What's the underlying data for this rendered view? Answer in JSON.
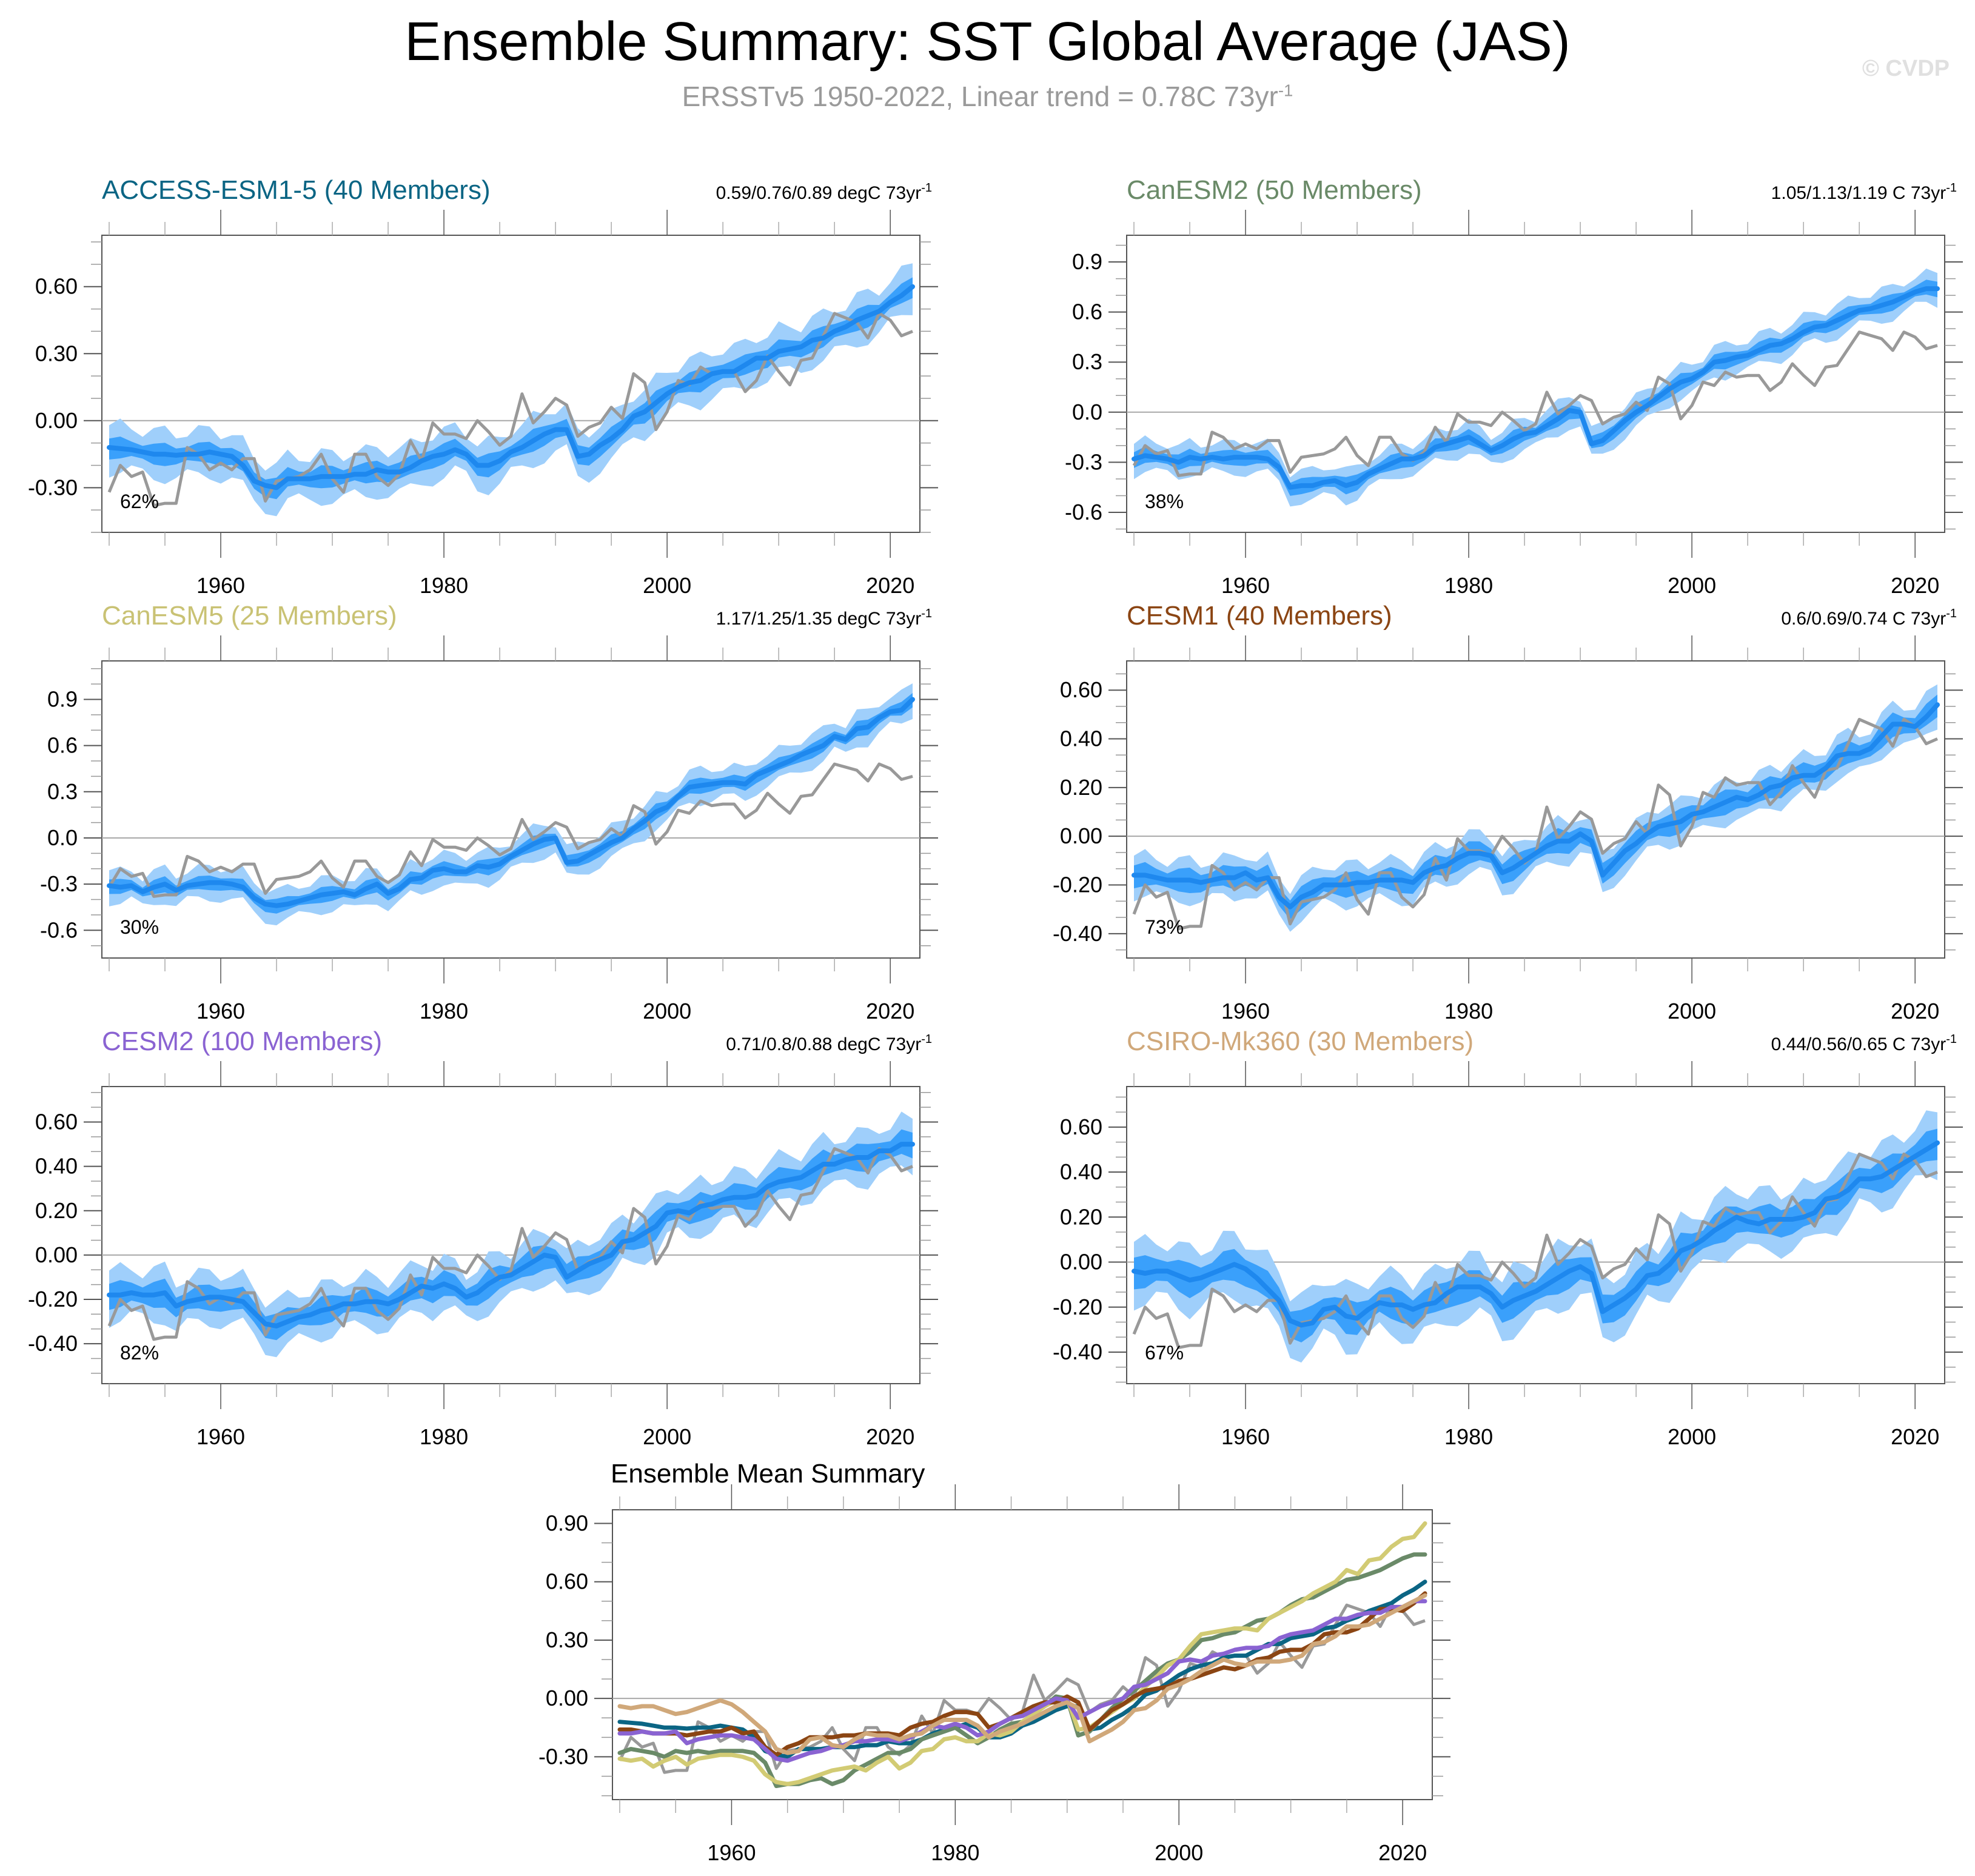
{
  "title": "Ensemble Summary: SST Global Average (JAS)",
  "subtitle_main": "ERSSTv5 1950-2022, Linear trend = 0.78C 73yr",
  "subtitle_sup": "-1",
  "watermark": "© CVDP",
  "colors": {
    "band_outer": "#9fcffb",
    "band_inner": "#3aa0fb",
    "mean_line": "#1e88ee",
    "obs_line": "#999999",
    "zero_line": "#a8a8a8"
  },
  "chart_data": [
    {
      "type": "line",
      "title": "ACCESS-ESM1-5 (40 Members)",
      "title_color": "#0b6584",
      "trend_text": "0.59/0.76/0.89 degC 73yr",
      "trend_sup": "-1",
      "percent_label": "62%",
      "xlim": [
        1950,
        2022
      ],
      "ylim": [
        -0.5,
        0.83
      ],
      "yticks": [
        -0.3,
        0.0,
        0.3,
        0.6
      ],
      "ytick_labels": [
        "-0.30",
        "0.00",
        "0.30",
        "0.60"
      ],
      "xticks": [
        1960,
        1980,
        2000,
        2020
      ],
      "xtick_labels": [
        "1960",
        "1980",
        "2000",
        "2020"
      ],
      "mean": [
        -0.12,
        -0.125,
        -0.13,
        -0.14,
        -0.15,
        -0.15,
        -0.155,
        -0.15,
        -0.15,
        -0.14,
        -0.15,
        -0.16,
        -0.2,
        -0.27,
        -0.29,
        -0.3,
        -0.26,
        -0.26,
        -0.26,
        -0.25,
        -0.25,
        -0.25,
        -0.24,
        -0.24,
        -0.22,
        -0.23,
        -0.23,
        -0.21,
        -0.18,
        -0.16,
        -0.15,
        -0.13,
        -0.15,
        -0.2,
        -0.2,
        -0.18,
        -0.14,
        -0.12,
        -0.09,
        -0.06,
        -0.04,
        -0.04,
        -0.16,
        -0.15,
        -0.11,
        -0.08,
        -0.04,
        0.02,
        0.04,
        0.08,
        0.12,
        0.15,
        0.17,
        0.18,
        0.21,
        0.22,
        0.22,
        0.25,
        0.28,
        0.28,
        0.31,
        0.32,
        0.33,
        0.36,
        0.37,
        0.4,
        0.42,
        0.45,
        0.47,
        0.49,
        0.53,
        0.56,
        0.6
      ],
      "inner_spread": 0.04,
      "outer_spread": 0.1
    },
    {
      "type": "line",
      "title": "CanESM2 (50 Members)",
      "title_color": "#6a8a68",
      "trend_text": "1.05/1.13/1.19 C 73yr",
      "trend_sup": "-1",
      "percent_label": "38%",
      "xlim": [
        1950,
        2022
      ],
      "ylim": [
        -0.72,
        1.06
      ],
      "yticks": [
        -0.6,
        -0.3,
        0.0,
        0.3,
        0.6,
        0.9
      ],
      "ytick_labels": [
        "-0.6",
        "-0.3",
        "0.0",
        "0.3",
        "0.6",
        "0.9"
      ],
      "xticks": [
        1960,
        1980,
        2000,
        2020
      ],
      "xtick_labels": [
        "1960",
        "1980",
        "2000",
        "2020"
      ],
      "mean": [
        -0.28,
        -0.26,
        -0.27,
        -0.28,
        -0.3,
        -0.27,
        -0.28,
        -0.27,
        -0.28,
        -0.27,
        -0.27,
        -0.27,
        -0.28,
        -0.33,
        -0.45,
        -0.44,
        -0.44,
        -0.42,
        -0.41,
        -0.44,
        -0.42,
        -0.37,
        -0.34,
        -0.31,
        -0.28,
        -0.28,
        -0.26,
        -0.21,
        -0.19,
        -0.17,
        -0.15,
        -0.19,
        -0.23,
        -0.2,
        -0.16,
        -0.13,
        -0.12,
        -0.08,
        -0.04,
        0.01,
        0.0,
        -0.19,
        -0.17,
        -0.11,
        -0.05,
        0.0,
        0.04,
        0.09,
        0.14,
        0.18,
        0.2,
        0.24,
        0.3,
        0.31,
        0.33,
        0.34,
        0.37,
        0.4,
        0.41,
        0.44,
        0.48,
        0.51,
        0.52,
        0.55,
        0.58,
        0.61,
        0.62,
        0.64,
        0.66,
        0.69,
        0.72,
        0.74,
        0.74
      ],
      "inner_spread": 0.04,
      "outer_spread": 0.09
    },
    {
      "type": "line",
      "title": "CanESM5 (25 Members)",
      "title_color": "#c9c274",
      "trend_text": "1.17/1.25/1.35 degC 73yr",
      "trend_sup": "-1",
      "percent_label": "30%",
      "xlim": [
        1950,
        2022
      ],
      "ylim": [
        -0.78,
        1.15
      ],
      "yticks": [
        -0.6,
        -0.3,
        0.0,
        0.3,
        0.6,
        0.9
      ],
      "ytick_labels": [
        "-0.6",
        "-0.3",
        "0.0",
        "0.3",
        "0.6",
        "0.9"
      ],
      "xticks": [
        1960,
        1980,
        2000,
        2020
      ],
      "xtick_labels": [
        "1960",
        "1980",
        "2000",
        "2020"
      ],
      "mean": [
        -0.31,
        -0.32,
        -0.31,
        -0.35,
        -0.32,
        -0.3,
        -0.34,
        -0.31,
        -0.3,
        -0.29,
        -0.29,
        -0.3,
        -0.32,
        -0.39,
        -0.43,
        -0.44,
        -0.43,
        -0.41,
        -0.39,
        -0.37,
        -0.36,
        -0.35,
        -0.37,
        -0.33,
        -0.3,
        -0.36,
        -0.33,
        -0.27,
        -0.26,
        -0.21,
        -0.2,
        -0.22,
        -0.22,
        -0.18,
        -0.19,
        -0.17,
        -0.12,
        -0.08,
        -0.04,
        -0.01,
        0.0,
        -0.16,
        -0.15,
        -0.11,
        -0.07,
        -0.03,
        0.0,
        0.06,
        0.11,
        0.17,
        0.2,
        0.27,
        0.33,
        0.34,
        0.35,
        0.36,
        0.36,
        0.35,
        0.41,
        0.44,
        0.47,
        0.5,
        0.54,
        0.57,
        0.6,
        0.66,
        0.64,
        0.71,
        0.72,
        0.78,
        0.82,
        0.83,
        0.9
      ],
      "inner_spread": 0.04,
      "outer_spread": 0.1
    },
    {
      "type": "line",
      "title": "CESM1 (40 Members)",
      "title_color": "#8b4513",
      "trend_text": "0.6/0.69/0.74 C 73yr",
      "trend_sup": "-1",
      "percent_label": "73%",
      "xlim": [
        1950,
        2022
      ],
      "ylim": [
        -0.5,
        0.72
      ],
      "yticks": [
        -0.4,
        -0.2,
        0.0,
        0.2,
        0.4,
        0.6
      ],
      "ytick_labels": [
        "-0.40",
        "-0.20",
        "0.00",
        "0.20",
        "0.40",
        "0.60"
      ],
      "xticks": [
        1960,
        1980,
        2000,
        2020
      ],
      "xtick_labels": [
        "1960",
        "1980",
        "2000",
        "2020"
      ],
      "mean": [
        -0.16,
        -0.16,
        -0.17,
        -0.18,
        -0.18,
        -0.18,
        -0.19,
        -0.18,
        -0.17,
        -0.17,
        -0.15,
        -0.18,
        -0.17,
        -0.25,
        -0.29,
        -0.25,
        -0.23,
        -0.2,
        -0.2,
        -0.2,
        -0.19,
        -0.19,
        -0.18,
        -0.18,
        -0.18,
        -0.19,
        -0.15,
        -0.13,
        -0.12,
        -0.09,
        -0.07,
        -0.07,
        -0.08,
        -0.15,
        -0.13,
        -0.1,
        -0.07,
        -0.04,
        -0.02,
        -0.02,
        0.01,
        -0.02,
        -0.16,
        -0.11,
        -0.06,
        -0.03,
        0.01,
        0.04,
        0.05,
        0.06,
        0.09,
        0.1,
        0.12,
        0.14,
        0.16,
        0.15,
        0.17,
        0.2,
        0.21,
        0.24,
        0.25,
        0.25,
        0.28,
        0.33,
        0.34,
        0.34,
        0.36,
        0.41,
        0.46,
        0.46,
        0.45,
        0.49,
        0.54
      ],
      "inner_spread": 0.04,
      "outer_spread": 0.08
    },
    {
      "type": "line",
      "title": "CESM2 (100 Members)",
      "title_color": "#8a63d2",
      "trend_text": "0.71/0.8/0.88 degC 73yr",
      "trend_sup": "-1",
      "percent_label": "82%",
      "xlim": [
        1950,
        2022
      ],
      "ylim": [
        -0.58,
        0.76
      ],
      "yticks": [
        -0.4,
        -0.2,
        0.0,
        0.2,
        0.4,
        0.6
      ],
      "ytick_labels": [
        "-0.40",
        "-0.20",
        "0.00",
        "0.20",
        "0.40",
        "0.60"
      ],
      "xticks": [
        1960,
        1980,
        2000,
        2020
      ],
      "xtick_labels": [
        "1960",
        "1980",
        "2000",
        "2020"
      ],
      "mean": [
        -0.18,
        -0.18,
        -0.17,
        -0.18,
        -0.18,
        -0.17,
        -0.23,
        -0.21,
        -0.2,
        -0.19,
        -0.19,
        -0.2,
        -0.21,
        -0.26,
        -0.31,
        -0.32,
        -0.3,
        -0.28,
        -0.27,
        -0.25,
        -0.24,
        -0.22,
        -0.22,
        -0.21,
        -0.21,
        -0.22,
        -0.2,
        -0.17,
        -0.14,
        -0.15,
        -0.13,
        -0.15,
        -0.19,
        -0.17,
        -0.13,
        -0.1,
        -0.09,
        -0.06,
        -0.03,
        0.0,
        -0.01,
        -0.1,
        -0.07,
        -0.04,
        -0.02,
        0.0,
        0.06,
        0.07,
        0.1,
        0.13,
        0.19,
        0.2,
        0.19,
        0.22,
        0.23,
        0.25,
        0.26,
        0.26,
        0.27,
        0.31,
        0.33,
        0.34,
        0.35,
        0.38,
        0.41,
        0.41,
        0.43,
        0.44,
        0.44,
        0.47,
        0.47,
        0.5,
        0.5
      ],
      "inner_spread": 0.05,
      "outer_spread": 0.11
    },
    {
      "type": "line",
      "title": "CSIRO-Mk360 (30 Members)",
      "title_color": "#d0a87a",
      "trend_text": "0.44/0.56/0.65 C 73yr",
      "trend_sup": "-1",
      "percent_label": "67%",
      "xlim": [
        1950,
        2022
      ],
      "ylim": [
        -0.54,
        0.78
      ],
      "yticks": [
        -0.4,
        -0.2,
        0.0,
        0.2,
        0.4,
        0.6
      ],
      "ytick_labels": [
        "-0.40",
        "-0.20",
        "0.00",
        "0.20",
        "0.40",
        "0.60"
      ],
      "xticks": [
        1960,
        1980,
        2000,
        2020
      ],
      "xtick_labels": [
        "1960",
        "1980",
        "2000",
        "2020"
      ],
      "mean": [
        -0.04,
        -0.05,
        -0.04,
        -0.04,
        -0.06,
        -0.08,
        -0.07,
        -0.05,
        -0.03,
        -0.01,
        -0.03,
        -0.07,
        -0.12,
        -0.17,
        -0.26,
        -0.28,
        -0.27,
        -0.21,
        -0.2,
        -0.24,
        -0.25,
        -0.21,
        -0.18,
        -0.19,
        -0.19,
        -0.21,
        -0.19,
        -0.18,
        -0.14,
        -0.11,
        -0.11,
        -0.11,
        -0.14,
        -0.2,
        -0.17,
        -0.15,
        -0.13,
        -0.1,
        -0.07,
        -0.04,
        -0.02,
        -0.05,
        -0.22,
        -0.19,
        -0.16,
        -0.12,
        -0.06,
        -0.05,
        -0.01,
        0.05,
        0.07,
        0.1,
        0.14,
        0.17,
        0.2,
        0.18,
        0.17,
        0.19,
        0.19,
        0.19,
        0.2,
        0.22,
        0.28,
        0.29,
        0.32,
        0.37,
        0.37,
        0.38,
        0.41,
        0.44,
        0.47,
        0.5,
        0.53
      ],
      "inner_spread": 0.06,
      "outer_spread": 0.13
    },
    {
      "type": "line",
      "title": "Ensemble Mean Summary",
      "title_color": "#000000",
      "xlim": [
        1950,
        2022
      ],
      "ylim": [
        -0.52,
        0.97
      ],
      "yticks": [
        -0.3,
        0.0,
        0.3,
        0.6,
        0.9
      ],
      "ytick_labels": [
        "-0.30",
        "0.00",
        "0.30",
        "0.60",
        "0.90"
      ],
      "xticks": [
        1960,
        1980,
        2000,
        2020
      ],
      "xtick_labels": [
        "1960",
        "1980",
        "2000",
        "2020"
      ],
      "series_ref": [
        "ACCESS-ESM1-5",
        "CanESM2",
        "CanESM5",
        "CESM1",
        "CESM2",
        "CSIRO-Mk360"
      ],
      "series_colors": [
        "#0b6584",
        "#6a8a68",
        "#d2cb74",
        "#8b4513",
        "#8a63d2",
        "#d0a87a"
      ]
    }
  ],
  "observations": {
    "name": "ERSSTv5",
    "x_start": 1950,
    "values": [
      -0.32,
      -0.2,
      -0.25,
      -0.23,
      -0.38,
      -0.37,
      -0.37,
      -0.12,
      -0.15,
      -0.22,
      -0.19,
      -0.22,
      -0.17,
      -0.17,
      -0.36,
      -0.27,
      -0.26,
      -0.25,
      -0.22,
      -0.15,
      -0.26,
      -0.32,
      -0.15,
      -0.15,
      -0.25,
      -0.29,
      -0.24,
      -0.09,
      -0.18,
      -0.01,
      -0.06,
      -0.06,
      -0.08,
      0.0,
      -0.05,
      -0.11,
      -0.07,
      0.12,
      -0.01,
      0.04,
      0.1,
      0.07,
      -0.07,
      -0.03,
      -0.01,
      0.06,
      0.01,
      0.21,
      0.17,
      -0.04,
      0.04,
      0.18,
      0.16,
      0.24,
      0.21,
      0.22,
      0.22,
      0.13,
      0.18,
      0.29,
      0.22,
      0.16,
      0.27,
      0.28,
      0.38,
      0.48,
      0.46,
      0.44,
      0.37,
      0.48,
      0.45,
      0.38,
      0.4
    ]
  }
}
